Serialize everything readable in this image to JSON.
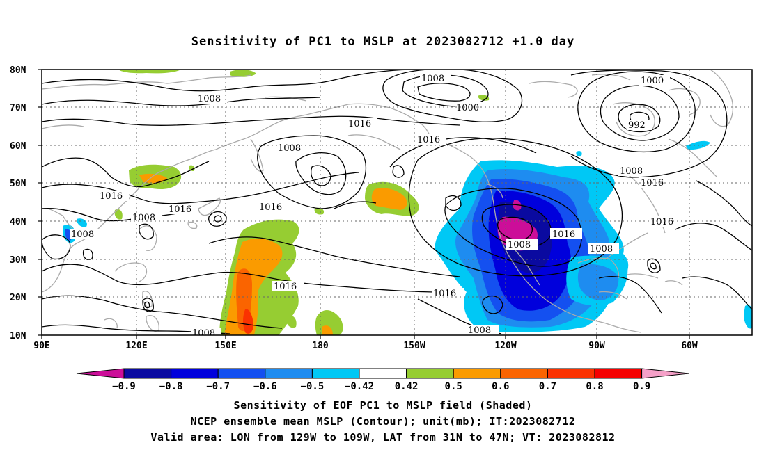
{
  "title": "Sensitivity of PC1 to MSLP at 2023082712 +1.0 day",
  "captions": {
    "line1": "Sensitivity of EOF PC1 to MSLP field (Shaded)",
    "line2": "NCEP ensemble mean MSLP (Contour); unit(mb); IT:2023082712",
    "line3": "Valid area: LON from 129W to 109W, LAT from 31N to 47N; VT: 2023082812"
  },
  "map": {
    "lat_labels": [
      "80N",
      "70N",
      "60N",
      "50N",
      "40N",
      "30N",
      "20N",
      "10N"
    ],
    "lon_labels": [
      "90E",
      "120E",
      "150E",
      "180",
      "150W",
      "120W",
      "90W",
      "60W"
    ],
    "contour_labels": [
      "1008",
      "1008",
      "1000",
      "1000",
      "992",
      "1016",
      "1016",
      "1008",
      "1008",
      "1016",
      "1016",
      "1016",
      "1008",
      "1008",
      "1016",
      "1016",
      "1016",
      "1008",
      "1008",
      "1016",
      "1008",
      "1016",
      "1008"
    ]
  },
  "colorbar": {
    "labels": [
      "-0.9",
      "-0.8",
      "-0.7",
      "-0.6",
      "-0.5",
      "-0.42",
      "0.42",
      "0.5",
      "0.6",
      "0.7",
      "0.8",
      "0.9"
    ],
    "colors": {
      "lt_-0.9": "#cc0e99",
      "-0.9_-0.8": "#0a0aa0",
      "-0.8_-0.7": "#0000dc",
      "-0.7_-0.6": "#1450f0",
      "-0.6_-0.5": "#1e8cf0",
      "-0.5_-0.42": "#00c8f5",
      "-0.42_0.42": "#ffffff",
      "0.42_0.5": "#96cd32",
      "0.5_0.6": "#fa9b00",
      "0.6_0.7": "#fa6400",
      "0.7_0.8": "#fa3200",
      "0.8_0.9": "#f50000",
      "gt_0.9": "#f5a0c8"
    }
  }
}
